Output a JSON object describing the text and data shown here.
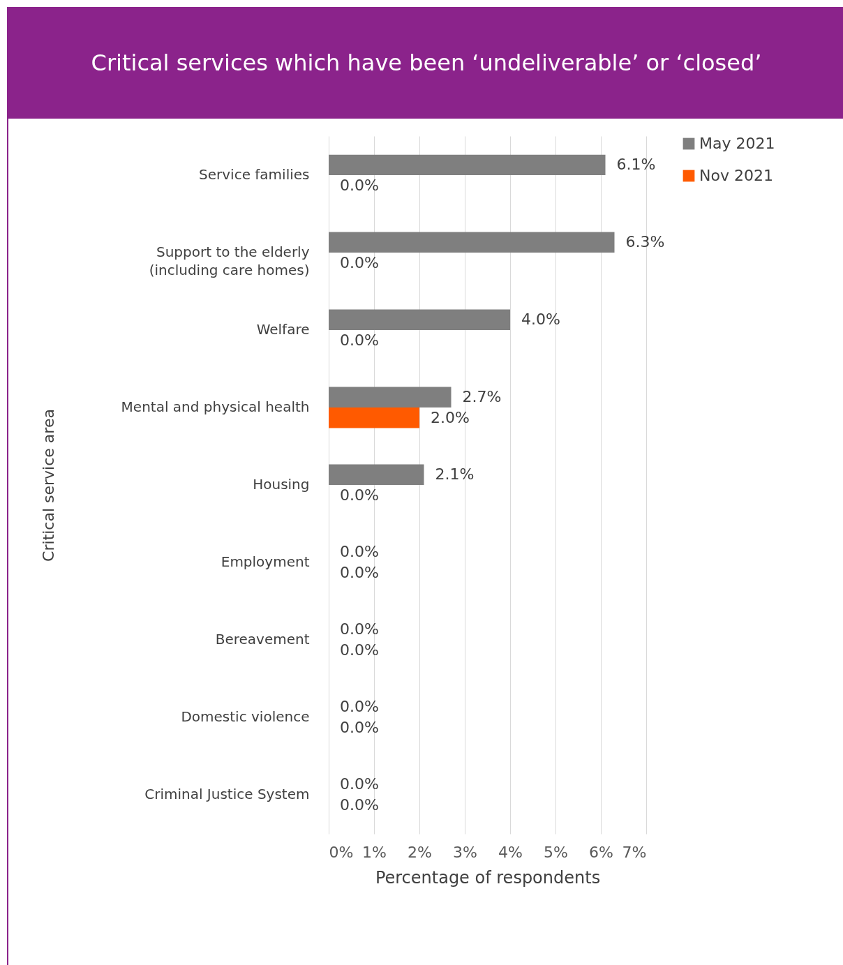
{
  "chart_data": {
    "type": "bar",
    "orientation": "horizontal",
    "title": "Critical services which have been ‘undeliverable’ or ‘closed’",
    "xlabel": "Percentage of respondents",
    "ylabel": "Critical service area",
    "categories": [
      "Service families",
      "Support to the elderly (including care homes)",
      "Welfare",
      "Mental and physical health",
      "Housing",
      "Employment",
      "Bereavement",
      "Domestic violence",
      "Criminal Justice System"
    ],
    "series": [
      {
        "name": "May 2021",
        "color": "#7f7f7f",
        "values": [
          6.1,
          6.3,
          4.0,
          2.7,
          2.1,
          0,
          0,
          0,
          0
        ],
        "value_labels": [
          "6.1%",
          "6.3%",
          "4.0%",
          "2.7%",
          "2.1%",
          "0.0%",
          "0.0%",
          "0.0%",
          "0.0%"
        ]
      },
      {
        "name": "Nov 2021",
        "color": "#ff5a00",
        "values": [
          0,
          0,
          0,
          2.0,
          0,
          0,
          0,
          0,
          0
        ],
        "value_labels": [
          "0.0%",
          "0.0%",
          "0.0%",
          "2.0%",
          "0.0%",
          "0.0%",
          "0.0%",
          "0.0%",
          "0.0%"
        ]
      }
    ],
    "xlim": [
      0,
      7
    ],
    "xticks": [
      {
        "value": 0,
        "label": "0%"
      },
      {
        "value": 1,
        "label": "1%"
      },
      {
        "value": 2,
        "label": "2%"
      },
      {
        "value": 3,
        "label": "3%"
      },
      {
        "value": 4,
        "label": "4%"
      },
      {
        "value": 5,
        "label": "5%"
      },
      {
        "value": 6,
        "label": "6%"
      },
      {
        "value": 7,
        "label": "7%"
      }
    ],
    "grid": "x",
    "legend": "right"
  }
}
